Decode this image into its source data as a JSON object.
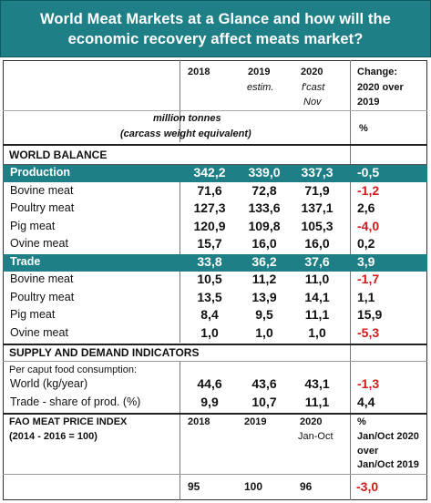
{
  "title": {
    "line1": "World Meat Markets at a Glance and how will the",
    "line2": "economic recovery affect meats market?"
  },
  "colors": {
    "accent": "#1f7f86",
    "negative": "#d11a1a"
  },
  "header": {
    "col_2018": "2018",
    "col_2019": "2019",
    "col_2019_sub": "estim.",
    "col_2020": "2020",
    "col_2020_sub1": "f'cast",
    "col_2020_sub2": "Nov",
    "col_change1": "Change:",
    "col_change2": "2020 over",
    "col_change3": "2019",
    "units1": "million tonnes",
    "units2": "(carcass weight equivalent)",
    "units_pct": "%"
  },
  "world_balance": {
    "heading": "WORLD BALANCE",
    "rows": [
      {
        "label": "Production",
        "v2018": "342,2",
        "v2019": "339,0",
        "v2020": "337,3",
        "change": "-0,5",
        "band": true,
        "negative": true
      },
      {
        "label": "Bovine meat",
        "v2018": "71,6",
        "v2019": "72,8",
        "v2020": "71,9",
        "change": "-1,2",
        "band": false,
        "negative": true
      },
      {
        "label": "Poultry meat",
        "v2018": "127,3",
        "v2019": "133,6",
        "v2020": "137,1",
        "change": "2,6",
        "band": false,
        "negative": false
      },
      {
        "label": "Pig meat",
        "v2018": "120,9",
        "v2019": "109,8",
        "v2020": "105,3",
        "change": "-4,0",
        "band": false,
        "negative": true
      },
      {
        "label": "Ovine meat",
        "v2018": "15,7",
        "v2019": "16,0",
        "v2020": "16,0",
        "change": "0,2",
        "band": false,
        "negative": false
      },
      {
        "label": "Trade",
        "v2018": "33,8",
        "v2019": "36,2",
        "v2020": "37,6",
        "change": "3,9",
        "band": true,
        "negative": false
      },
      {
        "label": "Bovine meat",
        "v2018": "10,5",
        "v2019": "11,2",
        "v2020": "11,0",
        "change": "-1,7",
        "band": false,
        "negative": true
      },
      {
        "label": "Poultry meat",
        "v2018": "13,5",
        "v2019": "13,9",
        "v2020": "14,1",
        "change": "1,1",
        "band": false,
        "negative": false
      },
      {
        "label": "Pig meat",
        "v2018": "8,4",
        "v2019": "9,5",
        "v2020": "11,1",
        "change": "15,9",
        "band": false,
        "negative": false
      },
      {
        "label": "Ovine meat",
        "v2018": "1,0",
        "v2019": "1,0",
        "v2020": "1,0",
        "change": "-5,3",
        "band": false,
        "negative": true
      }
    ]
  },
  "supply_demand": {
    "heading": "SUPPLY AND DEMAND INDICATORS",
    "subheading": "Per caput food consumption:",
    "rows": [
      {
        "label": "World (kg/year)",
        "v2018": "44,6",
        "v2019": "43,6",
        "v2020": "43,1",
        "change": "-1,3",
        "band": false,
        "negative": true
      },
      {
        "label": "Trade - share of prod. (%)",
        "v2018": "9,9",
        "v2019": "10,7",
        "v2020": "11,1",
        "change": "4,4",
        "band": false,
        "negative": false
      }
    ]
  },
  "price_index": {
    "heading1": "FAO MEAT PRICE INDEX",
    "heading2": "(2014 - 2016 = 100)",
    "col_2018": "2018",
    "col_2019": "2019",
    "col_2020": "2020",
    "col_2020_sub": "Jan-Oct",
    "col_change1": "%",
    "col_change2": "Jan/Oct 2020",
    "col_change3": "over",
    "col_change4": "Jan/Oct 2019",
    "v2018": "95",
    "v2019": "100",
    "v2020": "96",
    "change": "-3,0"
  }
}
